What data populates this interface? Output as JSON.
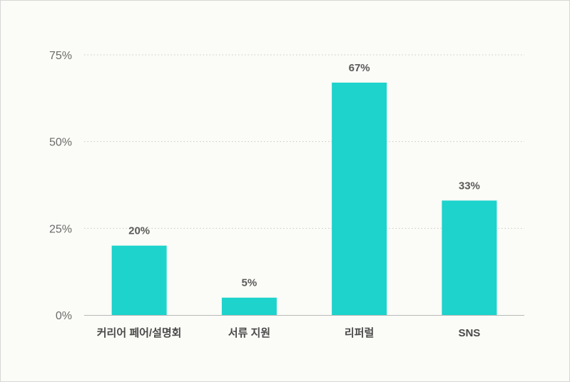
{
  "chart_data": {
    "type": "bar",
    "categories": [
      "커리어 페어/설명회",
      "서류 지원",
      "리퍼럴",
      "SNS"
    ],
    "values": [
      20,
      5,
      67,
      33
    ],
    "data_labels": [
      "20%",
      "5%",
      "67%",
      "33%"
    ],
    "title": "",
    "xlabel": "",
    "ylabel": "",
    "ylim": [
      0,
      75
    ],
    "yticks": [
      0,
      25,
      50,
      75
    ],
    "ytick_labels": [
      "0%",
      "25%",
      "50%",
      "75%"
    ],
    "grid": "horizontal dotted",
    "legend": "none",
    "colors": {
      "bar": "#1dd3cc",
      "grid": "#c8c8c8",
      "axis": "#b8b8b8",
      "background": "#fbfbf7"
    }
  }
}
